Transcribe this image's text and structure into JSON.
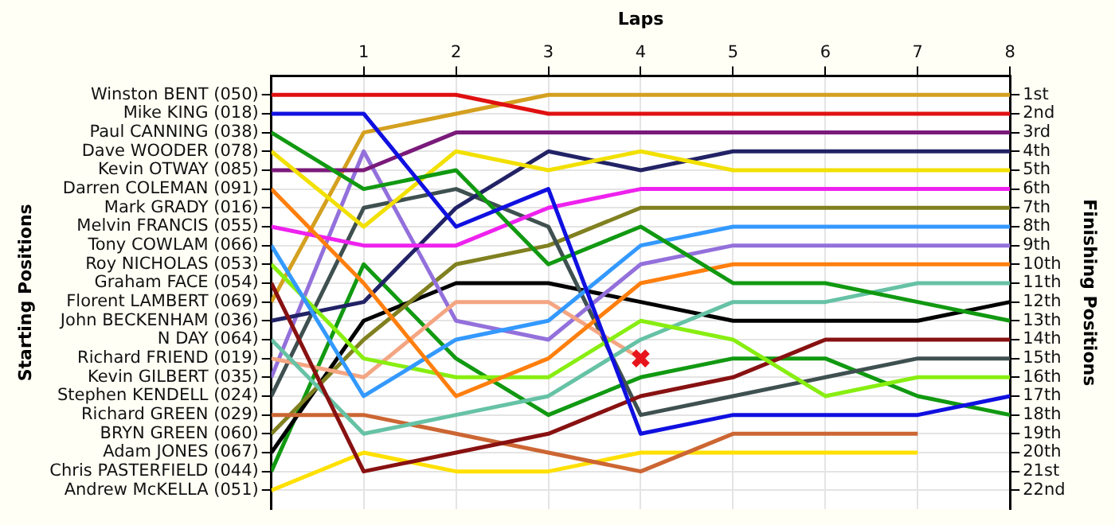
{
  "chart_data": {
    "type": "line",
    "xlabel": "Laps",
    "ylabel": "Finishing Positions",
    "annotations": [
      "Starting Positions"
    ],
    "x": [
      0,
      1,
      2,
      3,
      4,
      5,
      6,
      7,
      8
    ],
    "xlim": [
      0,
      8
    ],
    "xticks": [
      1,
      2,
      3,
      4,
      5,
      6,
      7,
      8
    ],
    "y_categories": [
      "Winston BENT (050)",
      "Mike KING (018)",
      "Paul CANNING (038)",
      "Dave WOODER (078)",
      "Kevin OTWAY (085)",
      "Darren COLEMAN (091)",
      "Mark GRADY (016)",
      "Melvin FRANCIS (055)",
      "Tony COWLAM (066)",
      "Roy NICHOLAS (053)",
      "Graham FACE (054)",
      "Florent LAMBERT (069)",
      "John BECKENHAM (036)",
      "N DAY (064)",
      "Richard FRIEND (019)",
      "Kevin GILBERT (035)",
      "Stephen KENDELL (024)",
      "Richard GREEN (029)",
      "BRYN GREEN (060)",
      "Adam JONES (067)",
      "Chris PASTERFIELD (044)",
      "Andrew McKELLA (051)"
    ],
    "ylim": [
      23,
      0
    ],
    "yticks": [
      {
        "value": 1,
        "label": "1st"
      },
      {
        "value": 2,
        "label": "2nd"
      },
      {
        "value": 3,
        "label": "3rd"
      },
      {
        "value": 4,
        "label": "4th"
      },
      {
        "value": 5,
        "label": "5th"
      },
      {
        "value": 6,
        "label": "6th"
      },
      {
        "value": 7,
        "label": "7th"
      },
      {
        "value": 8,
        "label": "8th"
      },
      {
        "value": 9,
        "label": "9th"
      },
      {
        "value": 10,
        "label": "10th"
      },
      {
        "value": 11,
        "label": "11th"
      },
      {
        "value": 12,
        "label": "12th"
      },
      {
        "value": 13,
        "label": "13th"
      },
      {
        "value": 14,
        "label": "14th"
      },
      {
        "value": 15,
        "label": "15th"
      },
      {
        "value": 16,
        "label": "16th"
      },
      {
        "value": 17,
        "label": "17th"
      },
      {
        "value": 18,
        "label": "18th"
      },
      {
        "value": 19,
        "label": "19th"
      },
      {
        "value": 20,
        "label": "20th"
      },
      {
        "value": 21,
        "label": "21st"
      },
      {
        "value": 22,
        "label": "22nd"
      }
    ],
    "grid": true,
    "legend": false,
    "marker": "none",
    "line_style": "solid",
    "series": [
      {
        "color": "#e01010",
        "values": [
          1,
          1,
          1,
          2,
          2,
          2,
          2,
          2,
          2
        ]
      },
      {
        "color": "#1010e0",
        "values": [
          2,
          2,
          8,
          6,
          19,
          18,
          18,
          18,
          17
        ]
      },
      {
        "color": "#119911",
        "values": [
          3,
          6,
          5,
          10,
          8,
          11,
          11,
          12,
          13
        ]
      },
      {
        "color": "#f2e000",
        "values": [
          4,
          8,
          4,
          5,
          4,
          5,
          5,
          5,
          5
        ]
      },
      {
        "color": "#7a1a7a",
        "values": [
          5,
          5,
          3,
          3,
          3,
          3,
          3,
          3,
          3
        ]
      },
      {
        "color": "#ff7f0e",
        "values": [
          6,
          11,
          17,
          15,
          11,
          10,
          10,
          10,
          10
        ]
      },
      {
        "color": "#ee22ee",
        "values": [
          8,
          9,
          9,
          7,
          6,
          6,
          6,
          6,
          6
        ]
      },
      {
        "color": "#3399ff",
        "values": [
          9,
          17,
          14,
          13,
          9,
          8,
          8,
          8,
          8
        ]
      },
      {
        "color": "#88ee11",
        "values": [
          10,
          15,
          16,
          16,
          13,
          14,
          17,
          16,
          16
        ]
      },
      {
        "color": "#881111",
        "values": [
          11,
          21,
          20,
          19,
          17,
          16,
          14,
          14,
          14
        ]
      },
      {
        "color": "#d4a020",
        "values": [
          12,
          3,
          2,
          1,
          1,
          1,
          1,
          1,
          1
        ]
      },
      {
        "color": "#222266",
        "values": [
          13,
          12,
          7,
          4,
          5,
          4,
          4,
          4,
          4
        ]
      },
      {
        "color": "#66c2a5",
        "values": [
          14,
          19,
          18,
          17,
          14,
          12,
          12,
          11,
          11
        ]
      },
      {
        "color": "#f4a582",
        "values": [
          15,
          16,
          12,
          12,
          15,
          null,
          null,
          null,
          null
        ]
      },
      {
        "color": "#9370db",
        "values": [
          16,
          4,
          13,
          14,
          10,
          9,
          9,
          9,
          9
        ]
      },
      {
        "color": "#3f5050",
        "values": [
          17,
          7,
          6,
          8,
          18,
          17,
          16,
          15,
          15
        ]
      },
      {
        "color": "#cc6633",
        "values": [
          18,
          18,
          19,
          20,
          21,
          19,
          19,
          19,
          null
        ]
      },
      {
        "color": "#808020",
        "values": [
          19,
          14,
          10,
          9,
          7,
          7,
          7,
          7,
          7
        ]
      },
      {
        "color": "#000000",
        "values": [
          20,
          13,
          11,
          11,
          12,
          13,
          13,
          13,
          12
        ]
      },
      {
        "color": "#119911",
        "values": [
          21,
          10,
          15,
          18,
          16,
          15,
          15,
          17,
          18
        ]
      },
      {
        "color": "#ffe000",
        "values": [
          22,
          20,
          21,
          21,
          20,
          20,
          20,
          20,
          null
        ]
      },
      {
        "type": "scatter",
        "marker": "cross",
        "color": "#e8141c",
        "x": [
          4
        ],
        "values": [
          15
        ]
      }
    ]
  }
}
